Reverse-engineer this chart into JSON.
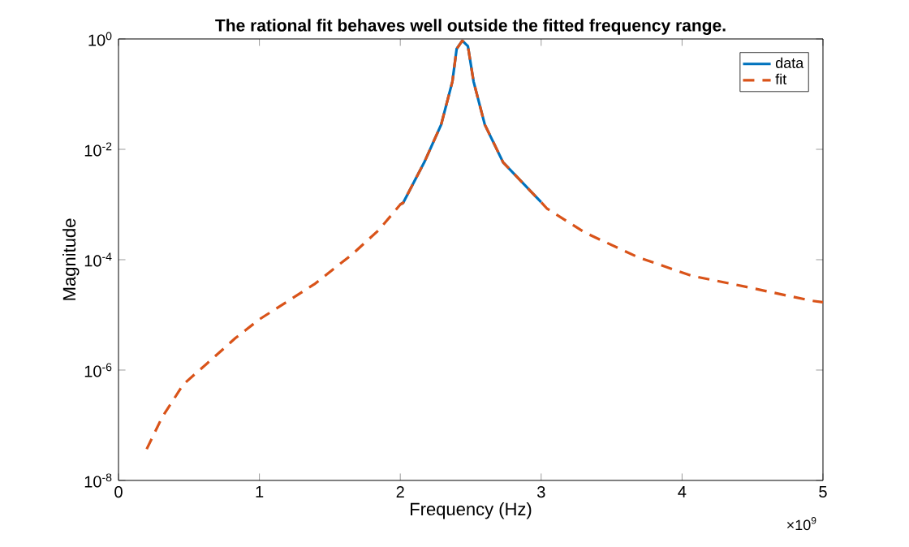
{
  "chart_data": {
    "type": "line",
    "title": "The rational fit behaves well outside the fitted frequency range.",
    "xlabel": "Frequency (Hz)",
    "ylabel": "Magnitude",
    "annotations": [
      "×10$^{9}$"
    ],
    "log": "y",
    "legend": "top right",
    "xlim": [
      0,
      5
    ],
    "xticks": [
      0,
      1,
      2,
      3,
      4,
      5
    ],
    "ylim": [
      1e-08,
      1
    ],
    "yticks": [
      {
        "value": 1e-08,
        "label": "10$^{-8}$"
      },
      {
        "value": 1e-06,
        "label": "10$^{-6}$"
      },
      {
        "value": 0.0001,
        "label": "10$^{-4}$"
      },
      {
        "value": 0.01,
        "label": "10$^{-2}$"
      },
      {
        "value": 1,
        "label": "10$^{0}$"
      }
    ],
    "series": [
      {
        "name": "data",
        "color": "#0072bd",
        "line_style": "solid",
        "x": [
          2.0,
          2.02,
          2.17,
          2.29,
          2.37,
          2.4,
          2.44,
          2.48,
          2.52,
          2.6,
          2.73,
          3.0
        ],
        "values": [
          0.001,
          0.00107,
          0.0058,
          0.028,
          0.17,
          0.66,
          0.93,
          0.74,
          0.17,
          0.028,
          0.0058,
          0.0011
        ]
      },
      {
        "name": "fit",
        "color": "#d95319",
        "line_style": "dashed",
        "x": [
          0.2,
          0.31,
          0.46,
          0.64,
          0.83,
          1.0,
          1.39,
          1.66,
          1.85,
          2.0,
          2.02,
          2.17,
          2.29,
          2.37,
          2.4,
          2.44,
          2.48,
          2.52,
          2.6,
          2.73,
          3.0,
          3.04,
          3.31,
          3.69,
          4.07,
          4.46,
          4.92,
          5.0
        ],
        "values": [
          3.7e-08,
          1.4e-07,
          5.5e-07,
          1.4e-06,
          3.8e-06,
          8.3e-06,
          3.6e-05,
          0.000126,
          0.00035,
          0.001,
          0.00107,
          0.0058,
          0.028,
          0.17,
          0.66,
          0.93,
          0.74,
          0.17,
          0.028,
          0.0058,
          0.0011,
          0.00085,
          0.00031,
          0.00011,
          5.1e-05,
          3.2e-05,
          1.8e-05,
          1.7e-05
        ]
      }
    ]
  }
}
